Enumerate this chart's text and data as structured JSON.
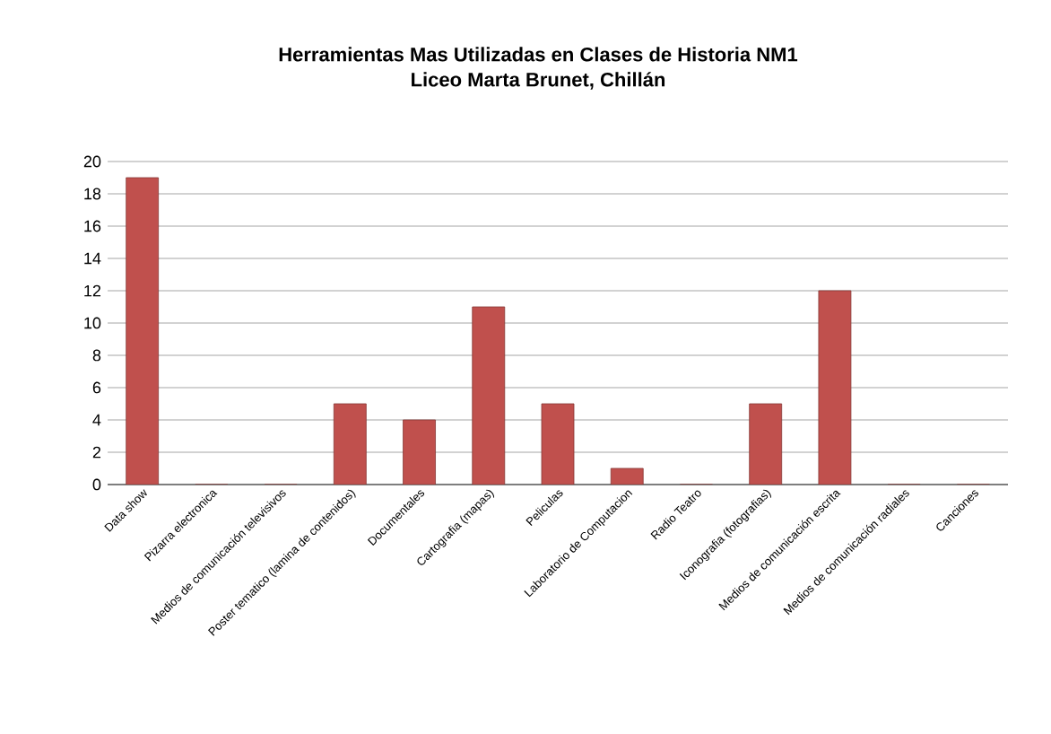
{
  "chart_data": {
    "type": "bar",
    "title": "Herramientas Mas Utilizadas en Clases de Historia NM1",
    "subtitle": "Liceo Marta Brunet, Chillán",
    "categories": [
      "Data show",
      "Pizarra electronica",
      "Medios de comunicación televisivos",
      "Poster tematico (lamina de contenidos)",
      "Documentales",
      "Cartografia (mapas)",
      "Peliculas",
      "Laboratorio de Computacion",
      "Radio Teatro",
      "Iconografia (fotografias)",
      "Medios de comunicación escrita",
      "Medios de comunicación radiales",
      "Canciones"
    ],
    "values": [
      19,
      0,
      0,
      5,
      4,
      11,
      5,
      1,
      0,
      5,
      12,
      0,
      0
    ],
    "color": "#c0504d",
    "ylim": [
      0,
      20
    ],
    "yticks": [
      0,
      2,
      4,
      6,
      8,
      10,
      12,
      14,
      16,
      18,
      20
    ],
    "grid": "y"
  }
}
